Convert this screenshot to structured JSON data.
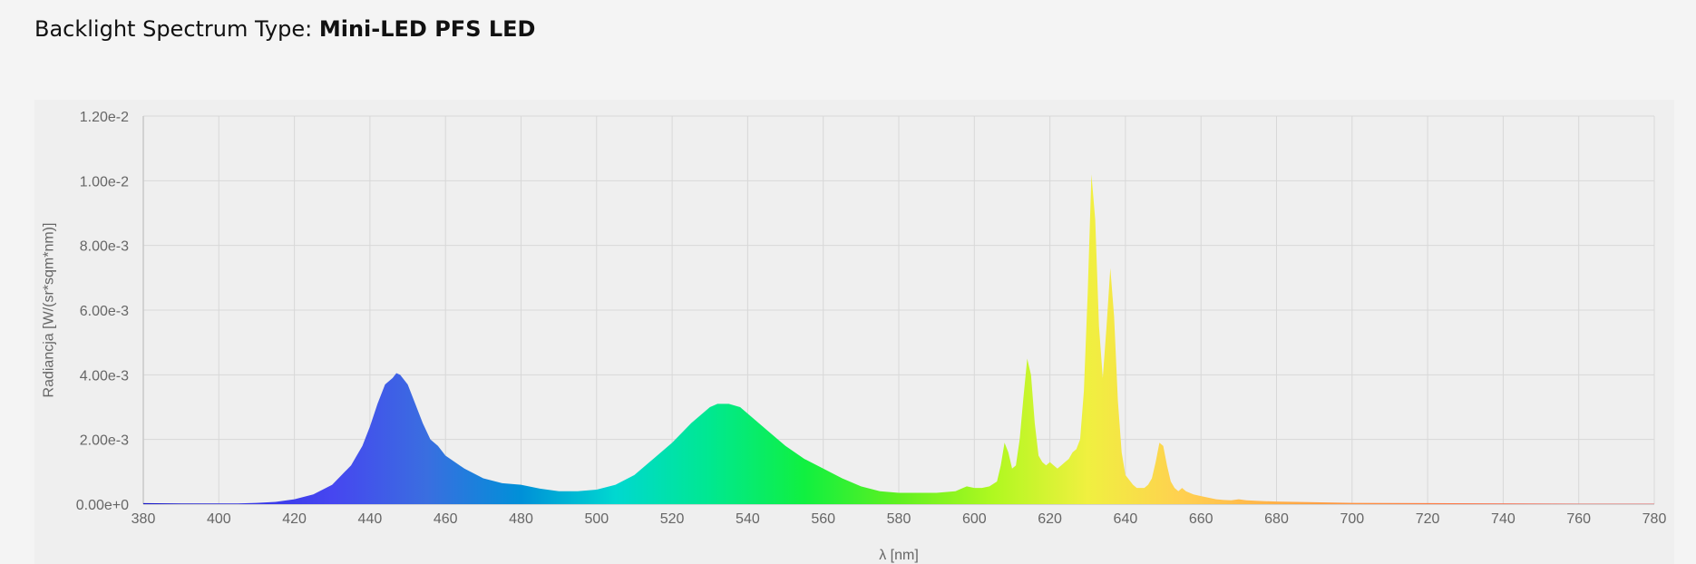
{
  "heading": {
    "label": "Backlight Spectrum Type: ",
    "value": "Mini-LED PFS LED"
  },
  "chart_data": {
    "type": "area",
    "title": "",
    "xlabel": "λ [nm]",
    "ylabel": "Radiancja [W/(sr*sqm*nm)]",
    "xlim": [
      380,
      780
    ],
    "ylim": [
      0,
      0.012
    ],
    "grid": true,
    "x_ticks": [
      "380",
      "400",
      "420",
      "440",
      "460",
      "480",
      "500",
      "520",
      "540",
      "560",
      "580",
      "600",
      "620",
      "640",
      "660",
      "680",
      "700",
      "720",
      "740",
      "760",
      "780"
    ],
    "y_ticks": [
      "0.00e+0",
      "2.00e-3",
      "4.00e-3",
      "6.00e-3",
      "8.00e-3",
      "1.00e-2",
      "1.20e-2"
    ],
    "series": [
      {
        "x": [
          380,
          390,
          400,
          405,
          410,
          415,
          420,
          425,
          430,
          435,
          438,
          440,
          442,
          444,
          446,
          447,
          448,
          450,
          452,
          454,
          456,
          458,
          460,
          465,
          470,
          475,
          480,
          485,
          490,
          495,
          500,
          505,
          510,
          515,
          520,
          525,
          528,
          530,
          532,
          535,
          538,
          540,
          545,
          550,
          555,
          560,
          565,
          570,
          575,
          580,
          585,
          590,
          595,
          597,
          598,
          600,
          602,
          604,
          606,
          607,
          608,
          609,
          610,
          611,
          612,
          613,
          614,
          615,
          616,
          617,
          618,
          619,
          620,
          621,
          622,
          623,
          624,
          625,
          626,
          627,
          628,
          629,
          630,
          631,
          632,
          633,
          634,
          635,
          636,
          637,
          638,
          639,
          640,
          642,
          643,
          644,
          645,
          646,
          647,
          648,
          649,
          650,
          651,
          652,
          653,
          654,
          655,
          656,
          658,
          660,
          662,
          664,
          666,
          668,
          670,
          672,
          675,
          680,
          690,
          700,
          720,
          740,
          760,
          780
        ],
        "values": [
          3e-05,
          2e-05,
          2e-05,
          2e-05,
          4e-05,
          7e-05,
          0.00015,
          0.0003,
          0.0006,
          0.0012,
          0.0018,
          0.0024,
          0.0031,
          0.0037,
          0.0039,
          0.00405,
          0.004,
          0.0037,
          0.0031,
          0.0025,
          0.002,
          0.0018,
          0.0015,
          0.0011,
          0.0008,
          0.00065,
          0.0006,
          0.00048,
          0.0004,
          0.0004,
          0.00045,
          0.0006,
          0.0009,
          0.0014,
          0.0019,
          0.0025,
          0.0028,
          0.003,
          0.0031,
          0.0031,
          0.003,
          0.0028,
          0.0023,
          0.0018,
          0.0014,
          0.0011,
          0.0008,
          0.00055,
          0.0004,
          0.00035,
          0.00035,
          0.00035,
          0.0004,
          0.0005,
          0.00055,
          0.0005,
          0.0005,
          0.00055,
          0.0007,
          0.0012,
          0.0019,
          0.0016,
          0.0011,
          0.0012,
          0.002,
          0.0033,
          0.0045,
          0.004,
          0.0025,
          0.0015,
          0.0013,
          0.0012,
          0.0013,
          0.0012,
          0.0011,
          0.0012,
          0.0013,
          0.0014,
          0.0016,
          0.0017,
          0.002,
          0.0035,
          0.0065,
          0.0102,
          0.0088,
          0.0055,
          0.0039,
          0.0055,
          0.0073,
          0.0058,
          0.0032,
          0.0016,
          0.0009,
          0.0006,
          0.0005,
          0.0005,
          0.0005,
          0.0006,
          0.0008,
          0.0013,
          0.0019,
          0.0018,
          0.0012,
          0.0007,
          0.0005,
          0.0004,
          0.0005,
          0.0004,
          0.0003,
          0.00025,
          0.0002,
          0.00015,
          0.00013,
          0.00012,
          0.00015,
          0.00012,
          0.0001,
          8e-05,
          6e-05,
          4e-05,
          3e-05,
          2e-05,
          1e-05,
          1e-05
        ],
        "colors": [
          "#1616c8",
          "#3535e6",
          "#4646f0",
          "#3a6ee0",
          "#0090d8",
          "#00d8d0",
          "#00e890",
          "#10f040",
          "#60f020",
          "#b0f820",
          "#f0f040",
          "#ffd050",
          "#ffb048",
          "#ff8c40",
          "#ff7040",
          "#ff5a48",
          "#ff5a5a"
        ]
      }
    ]
  }
}
